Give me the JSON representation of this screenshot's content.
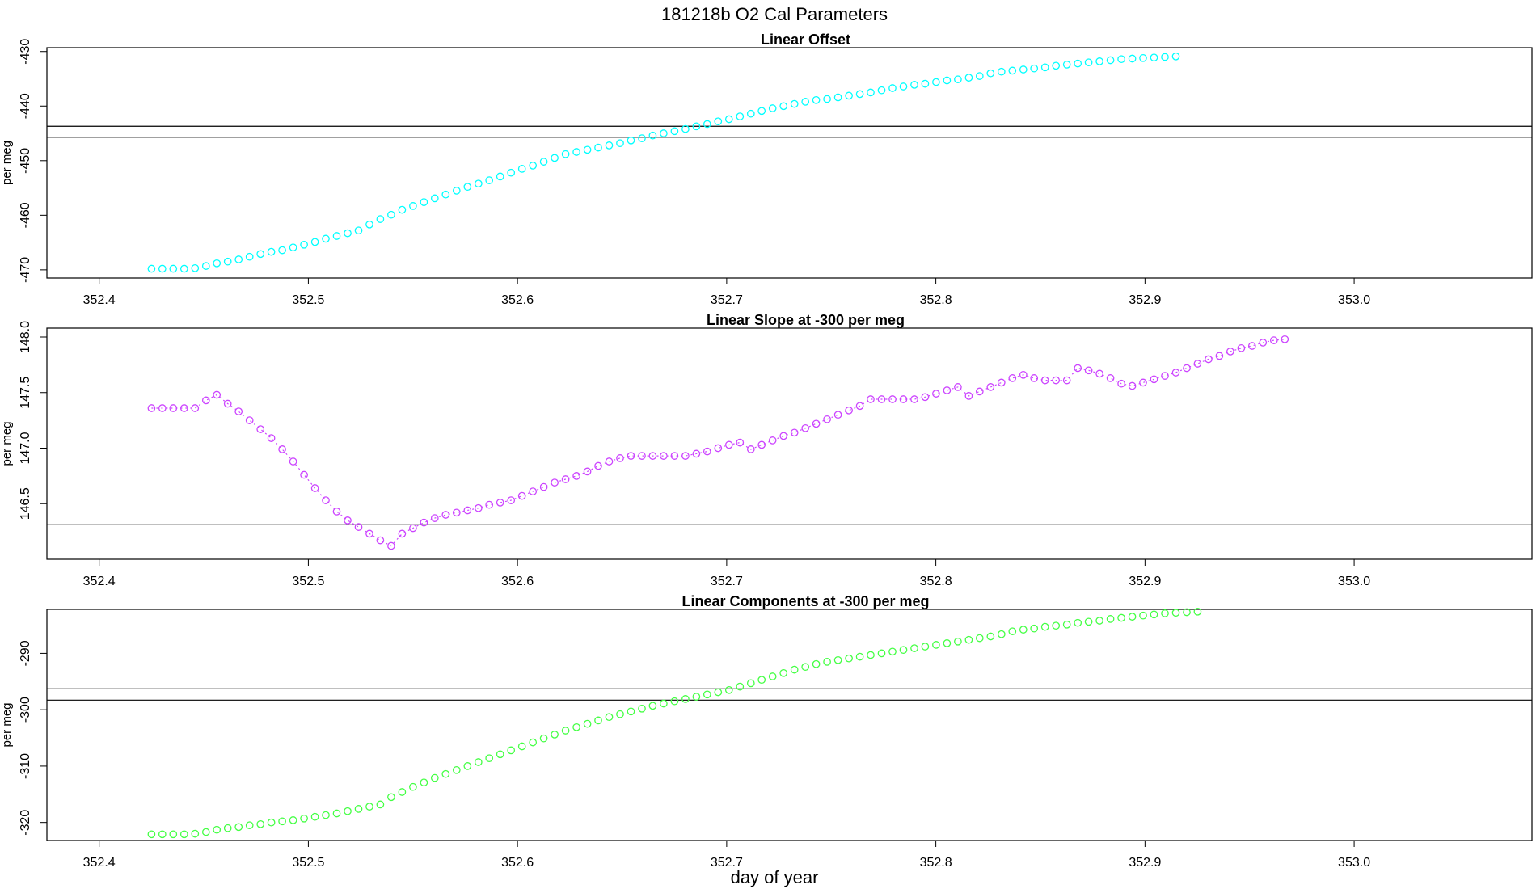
{
  "figure": {
    "title": "181218b   O2 Cal Parameters",
    "xlabel": "day of year"
  },
  "chart_data": [
    {
      "type": "scatter",
      "title": "Linear Offset",
      "xlabel": "",
      "ylabel": "per meg",
      "xlim": [
        352.375,
        353.085
      ],
      "ylim": [
        -471.5,
        -429.3
      ],
      "xticks": [
        352.4,
        352.5,
        352.6,
        352.7,
        352.8,
        352.9,
        353.0
      ],
      "xtick_labels": [
        "352.4",
        "352.5",
        "352.6",
        "352.7",
        "352.8",
        "352.9",
        "353.0"
      ],
      "yticks": [
        -470,
        -460,
        -450,
        -440,
        -430
      ],
      "ytick_labels": [
        "-470",
        "-460",
        "-450",
        "-440",
        "-430"
      ],
      "hlines": [
        -443.7,
        -445.7
      ],
      "color": "#00ffff",
      "marker": "open-circle",
      "connected": false,
      "x_start": 352.425,
      "x_step": 0.00521,
      "values": [
        -469.8,
        -469.8,
        -469.8,
        -469.8,
        -469.7,
        -469.3,
        -468.8,
        -468.5,
        -468.1,
        -467.6,
        -467.1,
        -466.7,
        -466.4,
        -465.9,
        -465.4,
        -464.9,
        -464.3,
        -463.8,
        -463.3,
        -462.8,
        -461.7,
        -460.7,
        -459.9,
        -459.0,
        -458.3,
        -457.6,
        -456.9,
        -456.2,
        -455.5,
        -454.8,
        -454.2,
        -453.6,
        -452.9,
        -452.2,
        -451.5,
        -450.9,
        -450.2,
        -449.5,
        -448.8,
        -448.4,
        -448.0,
        -447.6,
        -447.2,
        -446.8,
        -446.3,
        -445.9,
        -445.4,
        -445.0,
        -444.6,
        -444.2,
        -443.7,
        -443.3,
        -442.8,
        -442.4,
        -441.9,
        -441.4,
        -440.9,
        -440.4,
        -440.0,
        -439.6,
        -439.2,
        -438.9,
        -438.7,
        -438.4,
        -438.1,
        -437.8,
        -437.5,
        -437.1,
        -436.7,
        -436.4,
        -436.1,
        -435.9,
        -435.6,
        -435.3,
        -435.1,
        -434.8,
        -434.5,
        -434.0,
        -433.7,
        -433.5,
        -433.3,
        -433.1,
        -432.9,
        -432.6,
        -432.4,
        -432.2,
        -432.0,
        -431.8,
        -431.6,
        -431.4,
        -431.3,
        -431.2,
        -431.1,
        -431.0,
        -430.9
      ]
    },
    {
      "type": "line",
      "title": "Linear Slope at -300 per meg",
      "xlabel": "",
      "ylabel": "per meg",
      "xlim": [
        352.375,
        353.085
      ],
      "ylim": [
        146.0,
        148.08
      ],
      "xticks": [
        352.4,
        352.5,
        352.6,
        352.7,
        352.8,
        352.9,
        353.0
      ],
      "xtick_labels": [
        "352.4",
        "352.5",
        "352.6",
        "352.7",
        "352.8",
        "352.9",
        "353.0"
      ],
      "yticks": [
        146.5,
        147.0,
        147.5,
        148.0
      ],
      "ytick_labels": [
        "146.5",
        "147.0",
        "147.5",
        "148.0"
      ],
      "hlines": [
        146.31
      ],
      "color": "#cc44ff",
      "marker": "open-circle",
      "connected": true,
      "x_start": 352.425,
      "x_step": 0.00521,
      "values": [
        147.36,
        147.36,
        147.36,
        147.36,
        147.36,
        147.43,
        147.48,
        147.4,
        147.33,
        147.25,
        147.17,
        147.09,
        146.99,
        146.88,
        146.76,
        146.64,
        146.53,
        146.43,
        146.35,
        146.29,
        146.23,
        146.17,
        146.12,
        146.23,
        146.28,
        146.33,
        146.37,
        146.4,
        146.42,
        146.44,
        146.46,
        146.49,
        146.51,
        146.53,
        146.57,
        146.61,
        146.65,
        146.69,
        146.72,
        146.75,
        146.79,
        146.84,
        146.88,
        146.91,
        146.93,
        146.93,
        146.93,
        146.93,
        146.93,
        146.93,
        146.95,
        146.97,
        147.0,
        147.03,
        147.05,
        146.99,
        147.03,
        147.07,
        147.11,
        147.14,
        147.18,
        147.22,
        147.26,
        147.3,
        147.34,
        147.38,
        147.44,
        147.44,
        147.44,
        147.44,
        147.44,
        147.46,
        147.49,
        147.52,
        147.55,
        147.47,
        147.51,
        147.55,
        147.59,
        147.63,
        147.66,
        147.63,
        147.61,
        147.61,
        147.61,
        147.72,
        147.7,
        147.67,
        147.63,
        147.58,
        147.56,
        147.59,
        147.62,
        147.65,
        147.68,
        147.72,
        147.76,
        147.8,
        147.83,
        147.87,
        147.9,
        147.92,
        147.95,
        147.97,
        147.98
      ]
    },
    {
      "type": "scatter",
      "title": "Linear Components at -300 per meg",
      "xlabel": "",
      "ylabel": "per meg",
      "xlim": [
        352.375,
        353.085
      ],
      "ylim": [
        -323.2,
        -282.2
      ],
      "xticks": [
        352.4,
        352.5,
        352.6,
        352.7,
        352.8,
        352.9,
        353.0
      ],
      "xtick_labels": [
        "352.4",
        "352.5",
        "352.6",
        "352.7",
        "352.8",
        "352.9",
        "353.0"
      ],
      "yticks": [
        -320,
        -310,
        -300,
        -290
      ],
      "ytick_labels": [
        "-320",
        "-310",
        "-300",
        "-290"
      ],
      "hlines": [
        -296.3,
        -298.3
      ],
      "color": "#44ff44",
      "marker": "open-circle",
      "connected": false,
      "x_start": 352.425,
      "x_step": 0.00521,
      "values": [
        -322.1,
        -322.1,
        -322.1,
        -322.1,
        -322.0,
        -321.7,
        -321.3,
        -321.0,
        -320.8,
        -320.5,
        -320.3,
        -320.0,
        -319.8,
        -319.6,
        -319.3,
        -319.0,
        -318.7,
        -318.4,
        -318.0,
        -317.6,
        -317.2,
        -316.8,
        -315.5,
        -314.6,
        -313.7,
        -312.9,
        -312.1,
        -311.4,
        -310.7,
        -310.0,
        -309.3,
        -308.6,
        -307.9,
        -307.2,
        -306.5,
        -305.8,
        -305.1,
        -304.4,
        -303.7,
        -303.1,
        -302.5,
        -301.9,
        -301.3,
        -300.8,
        -300.3,
        -299.8,
        -299.3,
        -298.9,
        -298.5,
        -298.1,
        -297.7,
        -297.3,
        -296.9,
        -296.5,
        -295.9,
        -295.3,
        -294.7,
        -294.1,
        -293.5,
        -292.9,
        -292.4,
        -291.9,
        -291.5,
        -291.2,
        -290.9,
        -290.6,
        -290.3,
        -290.0,
        -289.7,
        -289.4,
        -289.1,
        -288.8,
        -288.5,
        -288.2,
        -287.9,
        -287.6,
        -287.3,
        -287.0,
        -286.6,
        -286.1,
        -285.8,
        -285.6,
        -285.3,
        -285.1,
        -284.9,
        -284.6,
        -284.4,
        -284.2,
        -283.9,
        -283.7,
        -283.5,
        -283.3,
        -283.1,
        -282.9,
        -282.8,
        -282.7,
        -282.6
      ]
    }
  ]
}
